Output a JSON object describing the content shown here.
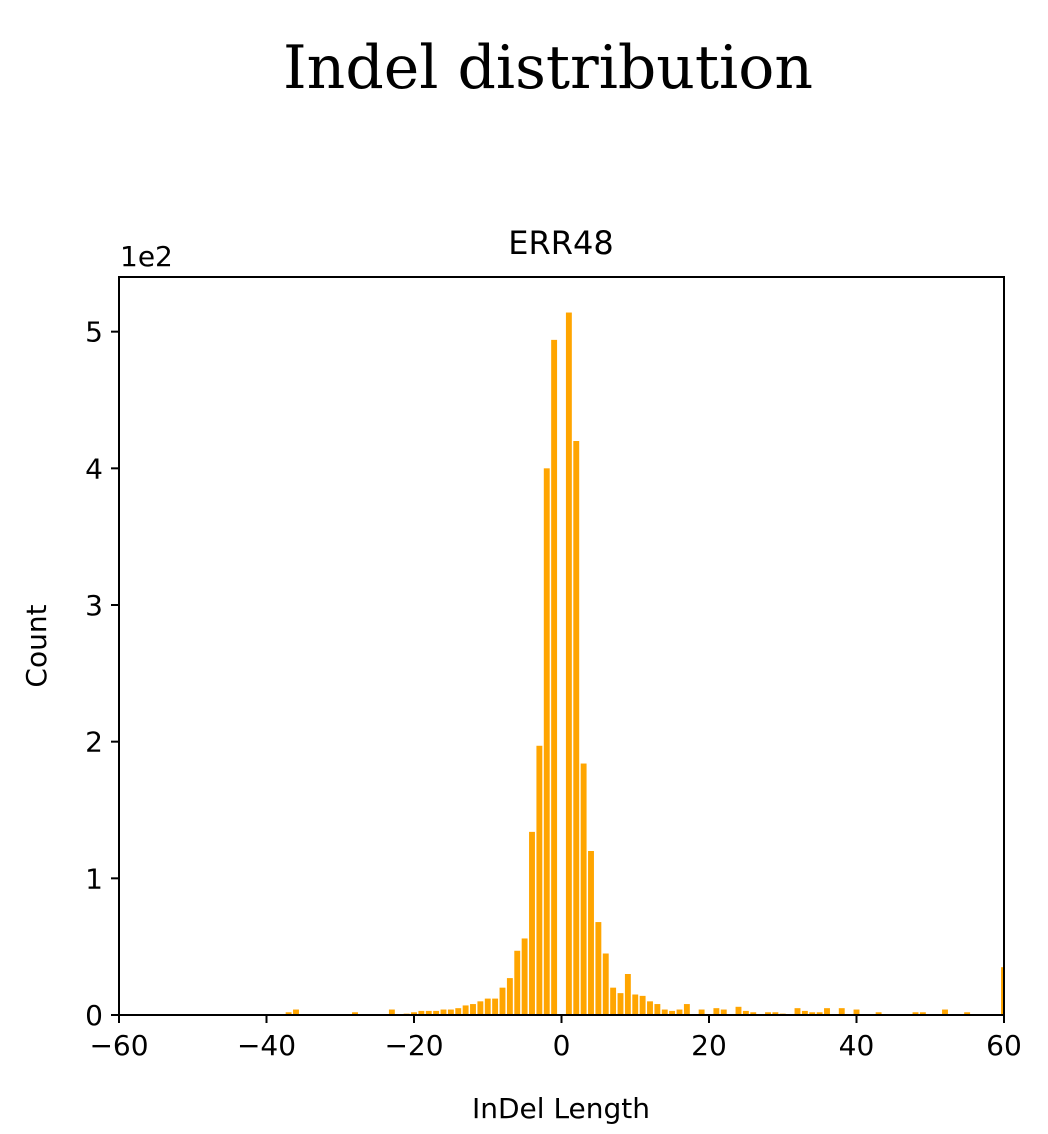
{
  "suptitle": "Indel distribution",
  "chart_data": {
    "type": "bar",
    "title": "ERR48",
    "xlabel": "InDel Length",
    "ylabel": "Count",
    "offset_text": "1e2",
    "xlim": [
      -60,
      60
    ],
    "ylim": [
      0,
      5.4
    ],
    "xticks": [
      -60,
      -40,
      -20,
      0,
      20,
      40,
      60
    ],
    "xtick_labels": [
      "−60",
      "−40",
      "−20",
      "0",
      "20",
      "40",
      "60"
    ],
    "yticks": [
      0,
      1,
      2,
      3,
      4,
      5
    ],
    "ytick_labels": [
      "0",
      "1",
      "2",
      "3",
      "4",
      "5"
    ],
    "bar_color": "#FFA500",
    "bar_width": 0.8,
    "x": [
      -37,
      -36,
      -28,
      -23,
      -21,
      -20,
      -19,
      -18,
      -17,
      -16,
      -15,
      -14,
      -13,
      -12,
      -11,
      -10,
      -9,
      -8,
      -7,
      -6,
      -5,
      -4,
      -3,
      -2,
      -1,
      0,
      1,
      2,
      3,
      4,
      5,
      6,
      7,
      8,
      9,
      10,
      11,
      12,
      13,
      14,
      15,
      16,
      17,
      19,
      21,
      22,
      24,
      25,
      26,
      28,
      29,
      30,
      32,
      33,
      34,
      35,
      36,
      38,
      40,
      43,
      48,
      49,
      52,
      55,
      60
    ],
    "values": [
      0.02,
      0.04,
      0.02,
      0.04,
      0.01,
      0.02,
      0.03,
      0.03,
      0.03,
      0.04,
      0.04,
      0.05,
      0.07,
      0.08,
      0.1,
      0.12,
      0.12,
      0.2,
      0.27,
      0.47,
      0.56,
      1.34,
      1.97,
      4.0,
      4.94,
      -0.0,
      5.14,
      4.2,
      1.84,
      1.2,
      0.68,
      0.45,
      0.2,
      0.16,
      0.3,
      0.15,
      0.14,
      0.1,
      0.08,
      0.04,
      0.03,
      0.04,
      0.08,
      0.04,
      0.05,
      0.04,
      0.06,
      0.03,
      0.02,
      0.02,
      0.02,
      0.01,
      0.05,
      0.03,
      0.02,
      0.02,
      0.05,
      0.05,
      0.04,
      0.02,
      0.02,
      0.02,
      0.04,
      0.02,
      0.35
    ]
  }
}
